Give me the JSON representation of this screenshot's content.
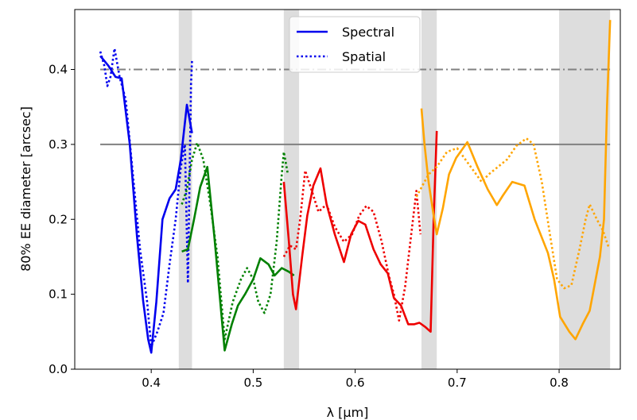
{
  "chart_data": {
    "type": "line",
    "xlabel": "λ [μm]",
    "ylabel": "80% EE diameter [arcsec]",
    "xlim": [
      0.325,
      0.86
    ],
    "ylim": [
      0.0,
      0.48
    ],
    "xticks": [
      "0.4",
      "0.5",
      "0.6",
      "0.7",
      "0.8"
    ],
    "yticks": [
      "0.0",
      "0.1",
      "0.2",
      "0.3",
      "0.4"
    ],
    "legend": {
      "placement": "top-center",
      "entries": [
        {
          "label": "Spectral",
          "style": "solid"
        },
        {
          "label": "Spatial",
          "style": "dotted"
        }
      ]
    },
    "bands": [
      [
        0.427,
        0.44
      ],
      [
        0.53,
        0.545
      ],
      [
        0.665,
        0.68
      ],
      [
        0.8,
        0.85
      ]
    ],
    "reference_lines": [
      {
        "y": 0.3,
        "style": "solid",
        "color": "#808080"
      },
      {
        "y": 0.4,
        "style": "dashdot",
        "color": "#808080"
      }
    ],
    "series": [
      {
        "color": "#0000ee",
        "style": "solid",
        "points": [
          [
            0.35,
            0.418
          ],
          [
            0.358,
            0.405
          ],
          [
            0.365,
            0.39
          ],
          [
            0.371,
            0.388
          ],
          [
            0.379,
            0.3
          ],
          [
            0.386,
            0.178
          ],
          [
            0.392,
            0.092
          ],
          [
            0.397,
            0.04
          ],
          [
            0.4,
            0.022
          ],
          [
            0.405,
            0.09
          ],
          [
            0.411,
            0.2
          ],
          [
            0.418,
            0.228
          ],
          [
            0.424,
            0.24
          ],
          [
            0.429,
            0.28
          ],
          [
            0.435,
            0.353
          ],
          [
            0.44,
            0.315
          ]
        ]
      },
      {
        "color": "#0000ee",
        "style": "dotted",
        "points": [
          [
            0.35,
            0.424
          ],
          [
            0.354,
            0.405
          ],
          [
            0.357,
            0.378
          ],
          [
            0.36,
            0.39
          ],
          [
            0.364,
            0.428
          ],
          [
            0.369,
            0.39
          ],
          [
            0.375,
            0.36
          ],
          [
            0.382,
            0.26
          ],
          [
            0.389,
            0.16
          ],
          [
            0.396,
            0.09
          ],
          [
            0.4,
            0.03
          ],
          [
            0.406,
            0.05
          ],
          [
            0.412,
            0.075
          ],
          [
            0.418,
            0.14
          ],
          [
            0.424,
            0.2
          ],
          [
            0.429,
            0.27
          ],
          [
            0.433,
            0.3
          ],
          [
            0.436,
            0.115
          ],
          [
            0.439,
            0.38
          ],
          [
            0.44,
            0.413
          ]
        ]
      },
      {
        "color": "#008000",
        "style": "solid",
        "points": [
          [
            0.43,
            0.157
          ],
          [
            0.436,
            0.16
          ],
          [
            0.442,
            0.2
          ],
          [
            0.448,
            0.243
          ],
          [
            0.455,
            0.27
          ],
          [
            0.462,
            0.175
          ],
          [
            0.467,
            0.1
          ],
          [
            0.472,
            0.025
          ],
          [
            0.479,
            0.06
          ],
          [
            0.485,
            0.085
          ],
          [
            0.492,
            0.1
          ],
          [
            0.5,
            0.12
          ],
          [
            0.507,
            0.148
          ],
          [
            0.515,
            0.14
          ],
          [
            0.521,
            0.125
          ],
          [
            0.528,
            0.135
          ],
          [
            0.535,
            0.13
          ],
          [
            0.54,
            0.125
          ]
        ]
      },
      {
        "color": "#008000",
        "style": "dotted",
        "points": [
          [
            0.43,
            0.22
          ],
          [
            0.435,
            0.24
          ],
          [
            0.44,
            0.28
          ],
          [
            0.445,
            0.302
          ],
          [
            0.451,
            0.28
          ],
          [
            0.458,
            0.22
          ],
          [
            0.465,
            0.15
          ],
          [
            0.472,
            0.04
          ],
          [
            0.48,
            0.09
          ],
          [
            0.488,
            0.12
          ],
          [
            0.494,
            0.135
          ],
          [
            0.5,
            0.12
          ],
          [
            0.505,
            0.09
          ],
          [
            0.511,
            0.075
          ],
          [
            0.517,
            0.1
          ],
          [
            0.523,
            0.17
          ],
          [
            0.528,
            0.26
          ],
          [
            0.53,
            0.29
          ],
          [
            0.534,
            0.26
          ]
        ]
      },
      {
        "color": "#ee0000",
        "style": "solid",
        "points": [
          [
            0.53,
            0.25
          ],
          [
            0.535,
            0.17
          ],
          [
            0.539,
            0.1
          ],
          [
            0.542,
            0.08
          ],
          [
            0.548,
            0.15
          ],
          [
            0.553,
            0.205
          ],
          [
            0.559,
            0.245
          ],
          [
            0.566,
            0.268
          ],
          [
            0.572,
            0.22
          ],
          [
            0.58,
            0.18
          ],
          [
            0.589,
            0.143
          ],
          [
            0.596,
            0.18
          ],
          [
            0.603,
            0.198
          ],
          [
            0.61,
            0.193
          ],
          [
            0.618,
            0.16
          ],
          [
            0.625,
            0.14
          ],
          [
            0.632,
            0.128
          ],
          [
            0.638,
            0.095
          ],
          [
            0.645,
            0.085
          ],
          [
            0.652,
            0.06
          ],
          [
            0.658,
            0.06
          ],
          [
            0.663,
            0.062
          ],
          [
            0.669,
            0.056
          ],
          [
            0.674,
            0.05
          ],
          [
            0.677,
            0.2
          ],
          [
            0.68,
            0.318
          ]
        ]
      },
      {
        "color": "#ee0000",
        "style": "dotted",
        "points": [
          [
            0.53,
            0.15
          ],
          [
            0.536,
            0.165
          ],
          [
            0.542,
            0.16
          ],
          [
            0.546,
            0.2
          ],
          [
            0.551,
            0.265
          ],
          [
            0.557,
            0.24
          ],
          [
            0.564,
            0.21
          ],
          [
            0.572,
            0.22
          ],
          [
            0.58,
            0.19
          ],
          [
            0.589,
            0.17
          ],
          [
            0.597,
            0.18
          ],
          [
            0.604,
            0.205
          ],
          [
            0.611,
            0.218
          ],
          [
            0.618,
            0.21
          ],
          [
            0.626,
            0.17
          ],
          [
            0.633,
            0.125
          ],
          [
            0.638,
            0.1
          ],
          [
            0.643,
            0.065
          ],
          [
            0.649,
            0.11
          ],
          [
            0.655,
            0.18
          ],
          [
            0.66,
            0.238
          ],
          [
            0.664,
            0.18
          ]
        ]
      },
      {
        "color": "#ffa500",
        "style": "solid",
        "points": [
          [
            0.665,
            0.348
          ],
          [
            0.668,
            0.3
          ],
          [
            0.672,
            0.25
          ],
          [
            0.677,
            0.205
          ],
          [
            0.68,
            0.18
          ],
          [
            0.686,
            0.215
          ],
          [
            0.692,
            0.26
          ],
          [
            0.699,
            0.282
          ],
          [
            0.71,
            0.303
          ],
          [
            0.72,
            0.27
          ],
          [
            0.73,
            0.24
          ],
          [
            0.739,
            0.219
          ],
          [
            0.745,
            0.232
          ],
          [
            0.754,
            0.25
          ],
          [
            0.766,
            0.245
          ],
          [
            0.776,
            0.2
          ],
          [
            0.789,
            0.155
          ],
          [
            0.795,
            0.12
          ],
          [
            0.801,
            0.07
          ],
          [
            0.81,
            0.05
          ],
          [
            0.816,
            0.04
          ],
          [
            0.823,
            0.06
          ],
          [
            0.83,
            0.078
          ],
          [
            0.84,
            0.15
          ],
          [
            0.844,
            0.2
          ],
          [
            0.847,
            0.35
          ],
          [
            0.85,
            0.466
          ]
        ]
      },
      {
        "color": "#ffa500",
        "style": "dotted",
        "points": [
          [
            0.66,
            0.23
          ],
          [
            0.666,
            0.245
          ],
          [
            0.672,
            0.26
          ],
          [
            0.68,
            0.27
          ],
          [
            0.69,
            0.29
          ],
          [
            0.7,
            0.295
          ],
          [
            0.708,
            0.28
          ],
          [
            0.716,
            0.265
          ],
          [
            0.724,
            0.25
          ],
          [
            0.731,
            0.26
          ],
          [
            0.74,
            0.27
          ],
          [
            0.749,
            0.28
          ],
          [
            0.758,
            0.298
          ],
          [
            0.768,
            0.308
          ],
          [
            0.775,
            0.3
          ],
          [
            0.783,
            0.25
          ],
          [
            0.791,
            0.18
          ],
          [
            0.798,
            0.12
          ],
          [
            0.805,
            0.108
          ],
          [
            0.812,
            0.112
          ],
          [
            0.82,
            0.16
          ],
          [
            0.826,
            0.2
          ],
          [
            0.83,
            0.22
          ],
          [
            0.837,
            0.2
          ],
          [
            0.843,
            0.185
          ],
          [
            0.848,
            0.165
          ],
          [
            0.85,
            0.163
          ]
        ]
      }
    ]
  }
}
